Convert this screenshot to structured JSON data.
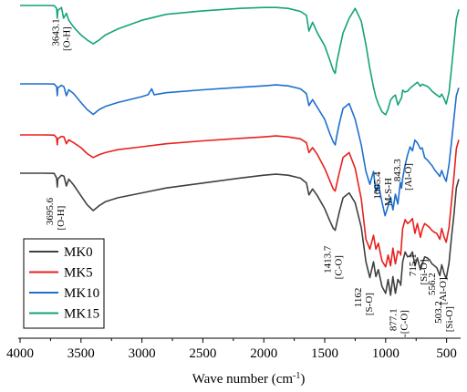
{
  "chart_data": {
    "type": "line",
    "xlabel": "Wave number (cm",
    "xlabel_sup": "-1",
    "xlabel_suffix": ")",
    "xlim": [
      4000,
      400
    ],
    "x_reversed": true,
    "y_ticks_shown": false,
    "grid": false,
    "legend_placement": "bottom-left",
    "x_ticks": [
      "4000",
      "3500",
      "3000",
      "2500",
      "2000",
      "1500",
      "1000",
      "500"
    ],
    "series": [
      {
        "name": "MK0",
        "color": "#404040",
        "offset": 0,
        "x": [
          4000,
          3800,
          3720,
          3700,
          3695,
          3690,
          3660,
          3640,
          3620,
          3600,
          3560,
          3500,
          3450,
          3400,
          3350,
          3300,
          3200,
          3000,
          2800,
          2500,
          2200,
          2000,
          1900,
          1800,
          1700,
          1650,
          1630,
          1600,
          1560,
          1500,
          1460,
          1430,
          1414,
          1400,
          1380,
          1350,
          1300,
          1250,
          1200,
          1162,
          1130,
          1100,
          1080,
          1060,
          1030,
          1000,
          980,
          960,
          940,
          920,
          900,
          880,
          877,
          860,
          840,
          820,
          800,
          780,
          760,
          740,
          715,
          700,
          680,
          660,
          640,
          620,
          600,
          580,
          556,
          540,
          520,
          503,
          480,
          460,
          440,
          420,
          400
        ],
        "y": [
          0,
          0,
          0.02,
          0.5,
          1.4,
          0.6,
          0.2,
          0.3,
          1.3,
          0.6,
          1.2,
          2.3,
          3.2,
          3.8,
          3.3,
          2.9,
          2.5,
          2.0,
          1.5,
          1.0,
          0.5,
          0.2,
          0.1,
          0.2,
          0.5,
          1.0,
          2.2,
          1.6,
          2.3,
          3.6,
          4.8,
          5.6,
          5.8,
          5.0,
          3.9,
          2.5,
          2.0,
          3.0,
          5.5,
          9.0,
          10.6,
          9.0,
          10.5,
          9.8,
          11.5,
          12.2,
          10.8,
          12.4,
          10.5,
          12.2,
          10.8,
          11.2,
          11.4,
          9.0,
          8.0,
          8.5,
          8.4,
          8.0,
          9.4,
          8.6,
          9.8,
          9.2,
          8.5,
          8.6,
          8.8,
          9.2,
          9.4,
          9.6,
          10.4,
          9.3,
          10.2,
          10.7,
          9.1,
          6.5,
          4.2,
          1.5,
          0.6
        ]
      },
      {
        "name": "MK5",
        "color": "#e8201d",
        "offset": 1,
        "x": [
          4000,
          3800,
          3720,
          3700,
          3695,
          3690,
          3660,
          3640,
          3620,
          3600,
          3560,
          3500,
          3450,
          3400,
          3350,
          3300,
          3200,
          3000,
          2800,
          2500,
          2200,
          2000,
          1900,
          1800,
          1700,
          1650,
          1630,
          1600,
          1560,
          1500,
          1460,
          1430,
          1414,
          1400,
          1380,
          1350,
          1300,
          1250,
          1200,
          1162,
          1130,
          1100,
          1080,
          1060,
          1030,
          1000,
          980,
          960,
          940,
          920,
          900,
          880,
          877,
          860,
          840,
          820,
          800,
          780,
          760,
          740,
          715,
          700,
          680,
          660,
          640,
          620,
          600,
          580,
          556,
          540,
          520,
          503,
          480,
          460,
          440,
          420,
          400
        ],
        "y": [
          0,
          0,
          0.02,
          0.3,
          1.0,
          0.4,
          0.15,
          0.2,
          0.9,
          0.5,
          0.8,
          1.3,
          1.9,
          2.3,
          2.0,
          1.8,
          1.5,
          1.2,
          0.9,
          0.6,
          0.35,
          0.2,
          0.1,
          0.2,
          0.4,
          0.8,
          1.8,
          1.3,
          2.0,
          3.4,
          4.6,
          5.5,
          5.7,
          4.9,
          3.8,
          2.3,
          1.8,
          3.4,
          6.5,
          10.6,
          11.6,
          10.2,
          11.6,
          11.0,
          12.8,
          13.4,
          12.2,
          13.3,
          11.5,
          13.1,
          11.8,
          12.0,
          12.2,
          9.5,
          8.6,
          9.0,
          8.8,
          8.5,
          10.0,
          9.0,
          10.4,
          9.6,
          9.0,
          9.2,
          9.4,
          9.7,
          9.9,
          10.0,
          10.6,
          9.5,
          10.4,
          10.9,
          9.4,
          6.8,
          4.2,
          1.4,
          0.5
        ]
      },
      {
        "name": "MK10",
        "color": "#1e6fce",
        "offset": 2,
        "x": [
          4000,
          3800,
          3720,
          3700,
          3695,
          3690,
          3660,
          3640,
          3620,
          3600,
          3560,
          3500,
          3450,
          3400,
          3350,
          3300,
          3200,
          3000,
          2950,
          2920,
          2900,
          2800,
          2500,
          2200,
          2000,
          1900,
          1800,
          1700,
          1650,
          1630,
          1600,
          1560,
          1500,
          1460,
          1430,
          1414,
          1400,
          1380,
          1350,
          1300,
          1250,
          1200,
          1162,
          1130,
          1100,
          1080,
          1060,
          1030,
          1005,
          980,
          960,
          940,
          920,
          900,
          880,
          870,
          860,
          843,
          820,
          800,
          780,
          760,
          740,
          715,
          700,
          680,
          660,
          640,
          620,
          600,
          580,
          556,
          540,
          520,
          503,
          480,
          460,
          440,
          420,
          400
        ],
        "y": [
          0,
          0,
          0.02,
          0.3,
          1.2,
          0.4,
          0.15,
          0.3,
          1.2,
          0.6,
          1.0,
          1.9,
          2.6,
          3.1,
          2.6,
          2.3,
          1.9,
          1.3,
          1.1,
          0.5,
          1.1,
          0.9,
          0.6,
          0.35,
          0.2,
          0.1,
          0.2,
          0.5,
          1.0,
          2.2,
          1.6,
          2.4,
          3.6,
          5.0,
          5.9,
          6.2,
          5.2,
          4.0,
          2.5,
          2.0,
          3.6,
          6.2,
          8.9,
          10.2,
          8.9,
          11.0,
          10.2,
          12.0,
          13.4,
          12.4,
          11.5,
          12.8,
          11.2,
          12.2,
          10.0,
          10.6,
          9.6,
          8.4,
          7.2,
          6.4,
          6.8,
          5.7,
          6.0,
          6.6,
          6.5,
          7.5,
          7.7,
          8.0,
          8.3,
          8.7,
          9.0,
          9.4,
          8.8,
          9.5,
          9.9,
          8.2,
          5.9,
          3.5,
          1.2,
          0.4
        ]
      },
      {
        "name": "MK15",
        "color": "#14a37c",
        "offset": 3,
        "x": [
          4000,
          3800,
          3720,
          3700,
          3695,
          3690,
          3660,
          3643,
          3620,
          3600,
          3560,
          3500,
          3450,
          3400,
          3350,
          3300,
          3200,
          3000,
          2800,
          2500,
          2200,
          2000,
          1900,
          1800,
          1700,
          1650,
          1630,
          1600,
          1560,
          1500,
          1460,
          1430,
          1414,
          1400,
          1380,
          1350,
          1300,
          1250,
          1200,
          1162,
          1130,
          1100,
          1080,
          1060,
          1030,
          1000,
          980,
          960,
          940,
          920,
          900,
          880,
          870,
          860,
          843,
          820,
          800,
          780,
          760,
          740,
          715,
          700,
          680,
          660,
          640,
          620,
          600,
          580,
          556,
          540,
          520,
          503,
          480,
          460,
          440,
          420,
          400
        ],
        "y": [
          0,
          0,
          0.02,
          0.3,
          1.3,
          0.5,
          0.2,
          1.3,
          0.8,
          1.5,
          2.2,
          3.0,
          3.5,
          3.9,
          3.5,
          3.0,
          2.4,
          1.5,
          0.9,
          0.55,
          0.3,
          0.2,
          0.2,
          0.3,
          0.6,
          1.0,
          2.6,
          1.7,
          2.8,
          4.1,
          5.5,
          6.6,
          6.9,
          5.7,
          4.5,
          2.8,
          1.3,
          0.3,
          1.6,
          4.0,
          6.4,
          8.3,
          9.3,
          10.0,
          10.8,
          11.1,
          10.5,
          9.6,
          9.3,
          9.1,
          10.1,
          9.6,
          9.4,
          8.6,
          8.8,
          8.7,
          8.4,
          8.2,
          8.0,
          7.8,
          8.2,
          8.0,
          8.1,
          8.2,
          8.4,
          8.7,
          8.9,
          9.1,
          9.3,
          9.0,
          9.5,
          10.0,
          8.8,
          6.4,
          3.9,
          1.4,
          0.4
        ]
      }
    ],
    "annotations": [
      {
        "text": "3643.1",
        "x": 3643,
        "series": 3,
        "dy": 0.3
      },
      {
        "text": "[O-H]",
        "x": 3643,
        "series": 3,
        "dy": 1.5
      },
      {
        "text": "3695.6",
        "x": 3695,
        "series": 0,
        "dy": 2.3
      },
      {
        "text": "[O-H]",
        "x": 3695,
        "series": 0,
        "dy": 3.5
      },
      {
        "text": "1413.7",
        "x": 1414,
        "series": 0,
        "dy": 6.8
      },
      {
        "text": "[C-O]",
        "x": 1414,
        "series": 0,
        "dy": 8.2
      },
      {
        "text": "1162",
        "x": 1162,
        "series": 0,
        "dy": 10.6
      },
      {
        "text": "[S-O]",
        "x": 1162,
        "series": 0,
        "dy": 11.8
      },
      {
        "text": "877.1",
        "x": 877,
        "series": 0,
        "dy": 12.3
      },
      {
        "text": "-[C-O]",
        "x": 877,
        "series": 0,
        "dy": 13.5
      },
      {
        "text": "1005.4",
        "x": 1005,
        "series": 2,
        "dy": 2.0
      },
      {
        "text": "M-S-H",
        "x": 1005,
        "series": 2,
        "dy": 3.2
      },
      {
        "text": "843.3",
        "x": 843,
        "series": 2,
        "dy": 4.2
      },
      {
        "text": "[Al-O]",
        "x": 843,
        "series": 2,
        "dy": 5.4
      },
      {
        "text": "715.1",
        "x": 715,
        "series": 0,
        "dy": 3.8
      },
      {
        "text": "[Si-O]",
        "x": 715,
        "series": 0,
        "dy": 5.1
      },
      {
        "text": "556.2",
        "x": 556,
        "series": 0,
        "dy": 6.7
      },
      {
        "text": "[Al-O]",
        "x": 556,
        "series": 0,
        "dy": 8.0
      },
      {
        "text": "503.2",
        "x": 503,
        "series": 0,
        "dy": 11.6
      },
      {
        "text": "[Si-O]",
        "x": 503,
        "series": 0,
        "dy": 12.9
      }
    ]
  }
}
